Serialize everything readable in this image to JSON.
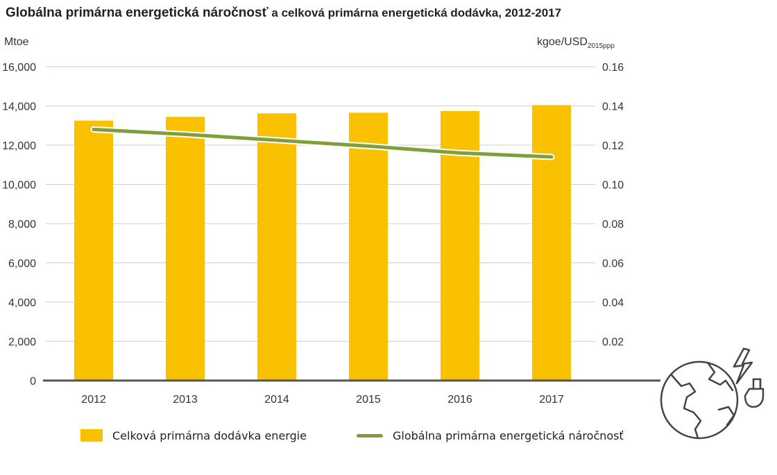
{
  "title_main": "Globálna primárna energetická náročnosť",
  "title_rest": " a celková primárna energetická dodávka, 2012-2017",
  "left_unit": "Mtoe",
  "right_unit": "kgoe/USD",
  "right_unit_sub": "2015ppp",
  "legend": {
    "bars": "Celková primárna dodávka energie",
    "line": "Globálna primárna energetická náročnosť"
  },
  "colors": {
    "bars": "#f9c100",
    "line": "#7f9f3a",
    "grid": "#cfcfcf",
    "axis": "#555555"
  },
  "chart_data": {
    "type": "bar",
    "categories": [
      "2012",
      "2013",
      "2014",
      "2015",
      "2016",
      "2017"
    ],
    "series": [
      {
        "name": "Celková primárna dodávka energie",
        "type": "bar",
        "axis": "left",
        "values": [
          13250,
          13440,
          13620,
          13650,
          13740,
          14040
        ]
      },
      {
        "name": "Globálna primárna energetická náročnosť",
        "type": "line",
        "axis": "right",
        "values": [
          0.128,
          0.1255,
          0.1225,
          0.1195,
          0.116,
          0.114
        ]
      }
    ],
    "left_axis": {
      "label": "Mtoe",
      "ylim": [
        0,
        16000
      ],
      "ticks": [
        "0",
        "2,000",
        "4,000",
        "6,000",
        "8,000",
        "10,000",
        "12,000",
        "14,000",
        "16,000"
      ]
    },
    "right_axis": {
      "label": "kgoe/USD2015ppp",
      "ylim": [
        0,
        0.16
      ],
      "ticks": [
        "0.02",
        "0.04",
        "0.06",
        "0.08",
        "0.10",
        "0.12",
        "0.14",
        "0.16"
      ]
    },
    "grid": true,
    "legend_position": "bottom"
  },
  "icon": "globe-energy-icon"
}
